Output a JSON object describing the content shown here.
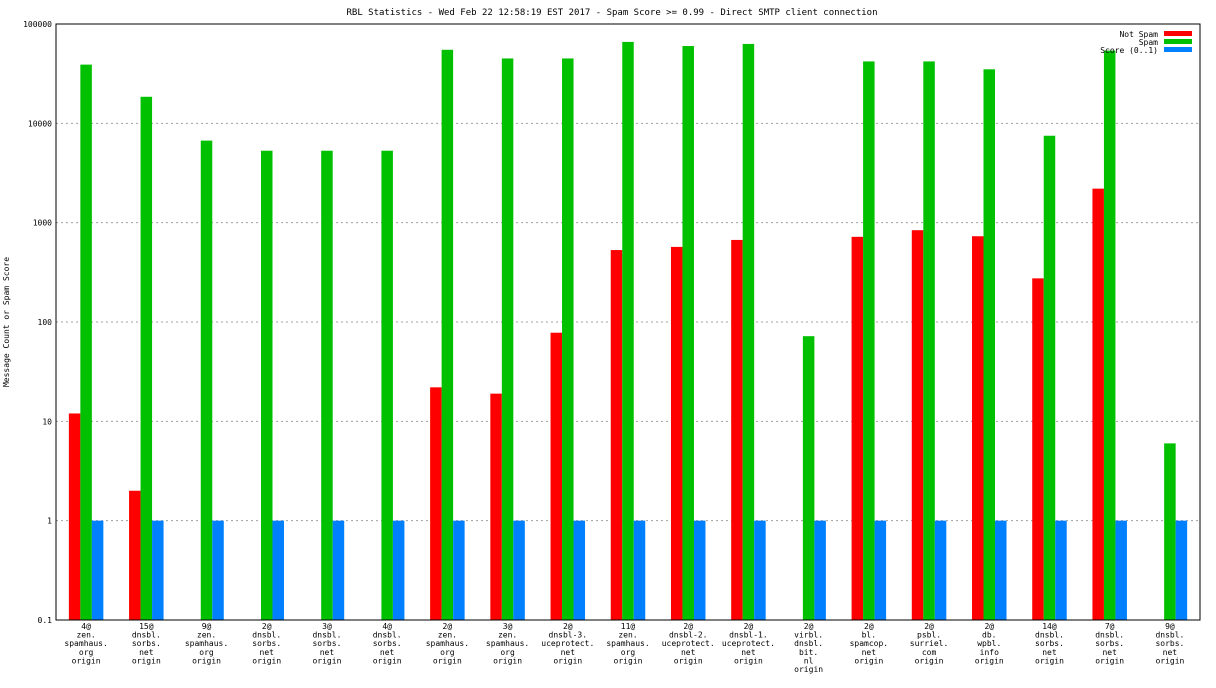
{
  "chart_data": {
    "type": "bar",
    "title": "RBL Statistics - Wed Feb 22 12:58:19 EST 2017 - Spam Score >= 0.99 - Direct SMTP client connection",
    "xlabel": "",
    "ylabel": "Message Count or Spam Score",
    "yscale": "log",
    "ylim": [
      0.1,
      100000
    ],
    "yticks": [
      "0.1",
      "1",
      "10",
      "100",
      "1000",
      "10000",
      "100000"
    ],
    "grid": true,
    "legend_position": "top-right",
    "categories": [
      [
        "4@",
        "zen.",
        "spamhaus.",
        "org",
        "origin"
      ],
      [
        "15@",
        "dnsbl.",
        "sorbs.",
        "net",
        "origin"
      ],
      [
        "9@",
        "zen.",
        "spamhaus.",
        "org",
        "origin"
      ],
      [
        "2@",
        "dnsbl.",
        "sorbs.",
        "net",
        "origin"
      ],
      [
        "3@",
        "dnsbl.",
        "sorbs.",
        "net",
        "origin"
      ],
      [
        "4@",
        "dnsbl.",
        "sorbs.",
        "net",
        "origin"
      ],
      [
        "2@",
        "zen.",
        "spamhaus.",
        "org",
        "origin"
      ],
      [
        "3@",
        "zen.",
        "spamhaus.",
        "org",
        "origin"
      ],
      [
        "2@",
        "dnsbl-3.",
        "uceprotect.",
        "net",
        "origin"
      ],
      [
        "11@",
        "zen.",
        "spamhaus.",
        "org",
        "origin"
      ],
      [
        "2@",
        "dnsbl-2.",
        "uceprotect.",
        "net",
        "origin"
      ],
      [
        "2@",
        "dnsbl-1.",
        "uceprotect.",
        "net",
        "origin"
      ],
      [
        "2@",
        "virbl.",
        "dnsbl.",
        "bit.",
        "nl",
        "origin"
      ],
      [
        "2@",
        "bl.",
        "spamcop.",
        "net",
        "origin"
      ],
      [
        "2@",
        "psbl.",
        "surriel.",
        "com",
        "origin"
      ],
      [
        "2@",
        "db.",
        "wpbl.",
        "info",
        "origin"
      ],
      [
        "14@",
        "dnsbl.",
        "sorbs.",
        "net",
        "origin"
      ],
      [
        "7@",
        "dnsbl.",
        "sorbs.",
        "net",
        "origin"
      ],
      [
        "9@",
        "dnsbl.",
        "sorbs.",
        "net",
        "origin"
      ]
    ],
    "series": [
      {
        "name": "Not Spam",
        "color": "#ff0000",
        "values": [
          12,
          2,
          null,
          null,
          null,
          null,
          22,
          19,
          78,
          530,
          570,
          670,
          null,
          720,
          840,
          730,
          275,
          2200,
          null
        ]
      },
      {
        "name": "Spam",
        "color": "#00c000",
        "values": [
          39000,
          18500,
          6700,
          5300,
          5300,
          5300,
          55000,
          45000,
          45000,
          66000,
          60000,
          63000,
          72,
          42000,
          42000,
          35000,
          7500,
          54000,
          6
        ]
      },
      {
        "name": "Score (0..1)",
        "color": "#0080ff",
        "values": [
          1,
          1,
          1,
          1,
          1,
          1,
          1,
          1,
          1,
          1,
          1,
          1,
          1,
          1,
          1,
          1,
          1,
          1,
          1
        ]
      }
    ]
  }
}
